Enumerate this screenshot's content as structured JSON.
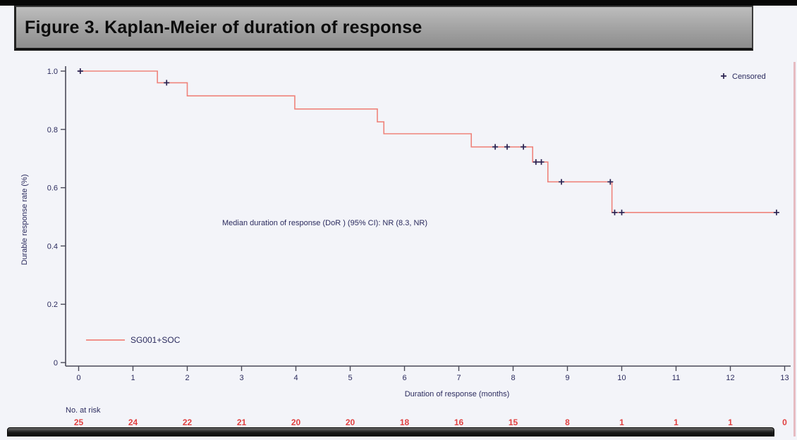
{
  "header": {
    "title": "Figure 3. Kaplan-Meier of duration of response"
  },
  "chart_data": {
    "type": "line",
    "subtype": "kaplan-meier-step",
    "title": "Figure 3. Kaplan-Meier of duration of response",
    "xlabel": "Duration of response (months)",
    "ylabel": "Durable response rate (%)",
    "xlim": [
      0,
      13
    ],
    "ylim": [
      0,
      1.0
    ],
    "xticks": [
      0,
      1,
      2,
      3,
      4,
      5,
      6,
      7,
      8,
      9,
      10,
      11,
      12,
      13
    ],
    "ytick_values": [
      1.0,
      0.8,
      0.6,
      0.4,
      0.2,
      0
    ],
    "ytick_labels": [
      "1.0",
      "0.8",
      "0.6",
      "0.4",
      "0.2",
      "0"
    ],
    "grid": "off",
    "annotation": "Median duration of response (DoR ) (95% CI): NR (8.3, NR)",
    "legend": {
      "censored_label": "Censored",
      "series_label": "SG001+SOC",
      "position": "censored top-right, series bottom-left"
    },
    "series": [
      {
        "name": "SG001+SOC",
        "color": "#ef837b",
        "step_vertices": [
          [
            0,
            1.0
          ],
          [
            1.45,
            1.0
          ],
          [
            1.45,
            0.96
          ],
          [
            2.0,
            0.96
          ],
          [
            2.0,
            0.915
          ],
          [
            3.98,
            0.915
          ],
          [
            3.98,
            0.87
          ],
          [
            5.5,
            0.87
          ],
          [
            5.5,
            0.826
          ],
          [
            5.62,
            0.826
          ],
          [
            5.62,
            0.785
          ],
          [
            7.23,
            0.785
          ],
          [
            7.23,
            0.74
          ],
          [
            8.36,
            0.74
          ],
          [
            8.36,
            0.688
          ],
          [
            8.64,
            0.688
          ],
          [
            8.64,
            0.62
          ],
          [
            9.82,
            0.62
          ],
          [
            9.82,
            0.515
          ],
          [
            12.85,
            0.515
          ]
        ]
      }
    ],
    "censored_points": [
      [
        0.03,
        1.0
      ],
      [
        1.62,
        0.96
      ],
      [
        7.67,
        0.74
      ],
      [
        7.89,
        0.74
      ],
      [
        8.19,
        0.74
      ],
      [
        8.42,
        0.688
      ],
      [
        8.52,
        0.688
      ],
      [
        8.89,
        0.62
      ],
      [
        9.79,
        0.62
      ],
      [
        9.87,
        0.515
      ],
      [
        10.0,
        0.515
      ],
      [
        12.85,
        0.515
      ]
    ],
    "at_risk": {
      "label": "No. at risk",
      "values": [
        "25",
        "24",
        "22",
        "21",
        "20",
        "20",
        "18",
        "16",
        "15",
        "8",
        "1",
        "1",
        "1",
        "0"
      ]
    },
    "colors": {
      "curve": "#ef837b",
      "censor_marker": "#2a2150",
      "axis": "#4a4a58",
      "tick_text": "#2b2b5e",
      "risk_numbers": "#e04040",
      "annotation_text": "#2b2b5e"
    }
  }
}
